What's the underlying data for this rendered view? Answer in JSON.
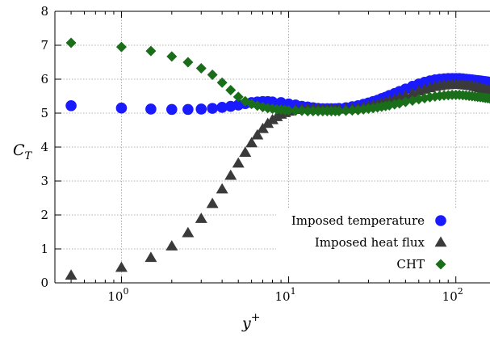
{
  "chart_data": {
    "type": "scatter",
    "xscale": "log",
    "xlim": [
      0.4,
      160
    ],
    "ylim": [
      0,
      8
    ],
    "grid": true,
    "legend_position": "bottom-right",
    "xlabel": {
      "base": "y",
      "sup": "+"
    },
    "ylabel": {
      "base": "C",
      "sub": "T"
    },
    "yticks": [
      0,
      1,
      2,
      3,
      4,
      5,
      6,
      7,
      8
    ],
    "yticklabels": [
      "0",
      "1",
      "2",
      "3",
      "4",
      "5",
      "6",
      "7",
      "8"
    ],
    "xticks": [
      1,
      10,
      100
    ],
    "xticklabels": [
      {
        "base": "10",
        "exp": "0"
      },
      {
        "base": "10",
        "exp": "1"
      },
      {
        "base": "10",
        "exp": "2"
      }
    ],
    "series": [
      {
        "name": "Imposed temperature",
        "color": "#1a1aff",
        "marker": "circle",
        "x": [
          0.5,
          1,
          1.5,
          2,
          2.5,
          3,
          3.5,
          4,
          4.5,
          5,
          5.5,
          6,
          6.5,
          7,
          7.5,
          8,
          9,
          10,
          11,
          12,
          13,
          14,
          15,
          16,
          17,
          18,
          19,
          20,
          22,
          24,
          26,
          28,
          30,
          32,
          34,
          36,
          38,
          40,
          43,
          46,
          50,
          55,
          60,
          65,
          70,
          75,
          80,
          85,
          90,
          95,
          100,
          105,
          110,
          115,
          120,
          125,
          130,
          135,
          140,
          145,
          150,
          155,
          160
        ],
        "y": [
          5.22,
          5.15,
          5.12,
          5.11,
          5.11,
          5.12,
          5.14,
          5.17,
          5.2,
          5.24,
          5.28,
          5.31,
          5.33,
          5.34,
          5.34,
          5.33,
          5.31,
          5.27,
          5.24,
          5.2,
          5.18,
          5.16,
          5.14,
          5.13,
          5.13,
          5.13,
          5.13,
          5.14,
          5.16,
          5.19,
          5.22,
          5.26,
          5.3,
          5.34,
          5.38,
          5.43,
          5.47,
          5.52,
          5.58,
          5.64,
          5.71,
          5.79,
          5.86,
          5.91,
          5.95,
          5.98,
          6.0,
          6.01,
          6.02,
          6.02,
          6.02,
          6.02,
          6.01,
          6.0,
          5.99,
          5.98,
          5.97,
          5.96,
          5.95,
          5.94,
          5.93,
          5.92,
          5.9
        ]
      },
      {
        "name": "Imposed heat flux",
        "color": "#3a3a3a",
        "marker": "triangle",
        "x": [
          0.5,
          1,
          1.5,
          2,
          2.5,
          3,
          3.5,
          4,
          4.5,
          5,
          5.5,
          6,
          6.5,
          7,
          7.5,
          8,
          8.5,
          9,
          9.5,
          10,
          11,
          12,
          13,
          14,
          15,
          16,
          17,
          18,
          19,
          20,
          22,
          24,
          26,
          28,
          30,
          32,
          34,
          36,
          38,
          40,
          43,
          46,
          50,
          55,
          60,
          65,
          70,
          75,
          80,
          85,
          90,
          95,
          100,
          105,
          110,
          115,
          120,
          125,
          130,
          135,
          140,
          145,
          150,
          155,
          160
        ],
        "y": [
          0.22,
          0.45,
          0.74,
          1.08,
          1.47,
          1.89,
          2.33,
          2.76,
          3.16,
          3.52,
          3.84,
          4.12,
          4.35,
          4.54,
          4.69,
          4.8,
          4.89,
          4.96,
          5.01,
          5.05,
          5.1,
          5.12,
          5.13,
          5.13,
          5.13,
          5.12,
          5.12,
          5.12,
          5.11,
          5.11,
          5.12,
          5.13,
          5.15,
          5.17,
          5.2,
          5.23,
          5.26,
          5.29,
          5.32,
          5.35,
          5.4,
          5.45,
          5.51,
          5.58,
          5.65,
          5.7,
          5.74,
          5.78,
          5.8,
          5.82,
          5.83,
          5.84,
          5.84,
          5.84,
          5.83,
          5.82,
          5.81,
          5.8,
          5.78,
          5.76,
          5.74,
          5.72,
          5.7,
          5.68,
          5.66
        ]
      },
      {
        "name": "CHT",
        "color": "#1a6e1a",
        "marker": "diamond",
        "x": [
          0.5,
          1,
          1.5,
          2,
          2.5,
          3,
          3.5,
          4,
          4.5,
          5,
          5.5,
          6,
          6.5,
          7,
          7.5,
          8,
          8.5,
          9,
          9.5,
          10,
          11,
          12,
          13,
          14,
          15,
          16,
          17,
          18,
          19,
          20,
          22,
          24,
          26,
          28,
          30,
          32,
          34,
          36,
          38,
          40,
          43,
          46,
          50,
          55,
          60,
          65,
          70,
          75,
          80,
          85,
          90,
          95,
          100,
          105,
          110,
          115,
          120,
          125,
          130,
          135,
          140,
          145,
          150,
          155,
          160
        ],
        "y": [
          7.07,
          6.95,
          6.83,
          6.67,
          6.5,
          6.32,
          6.13,
          5.9,
          5.68,
          5.48,
          5.35,
          5.27,
          5.22,
          5.18,
          5.15,
          5.13,
          5.11,
          5.1,
          5.09,
          5.08,
          5.07,
          5.07,
          5.06,
          5.06,
          5.06,
          5.06,
          5.06,
          5.06,
          5.06,
          5.06,
          5.07,
          5.08,
          5.09,
          5.11,
          5.13,
          5.15,
          5.17,
          5.19,
          5.21,
          5.23,
          5.26,
          5.29,
          5.33,
          5.37,
          5.41,
          5.44,
          5.47,
          5.49,
          5.51,
          5.52,
          5.53,
          5.54,
          5.54,
          5.54,
          5.53,
          5.52,
          5.51,
          5.5,
          5.49,
          5.48,
          5.47,
          5.46,
          5.45,
          5.44,
          5.43
        ]
      }
    ]
  }
}
